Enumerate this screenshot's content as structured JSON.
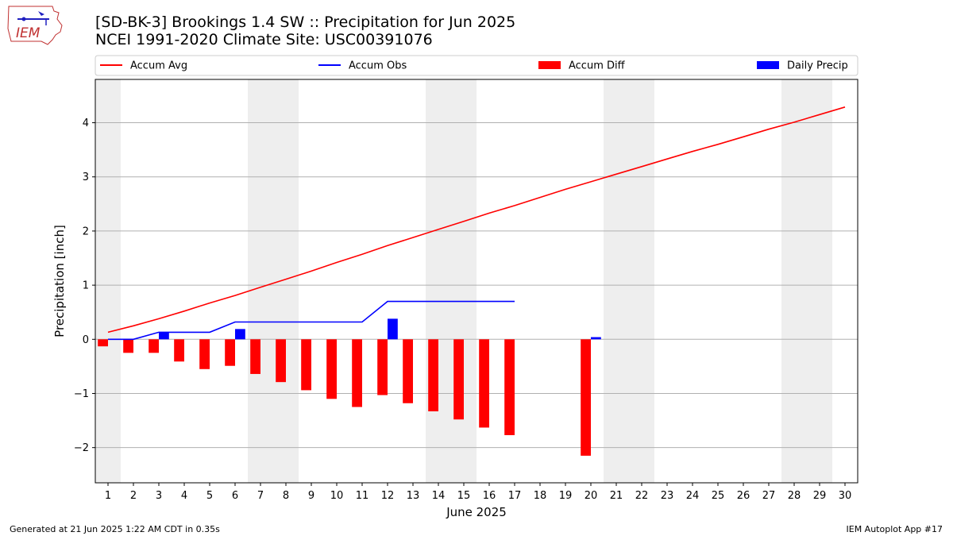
{
  "header": {
    "title_line1": "[SD-BK-3] Brookings 1.4 SW :: Precipitation for Jun 2025",
    "title_line2": "NCEI 1991-2020 Climate Site: USC00391076",
    "logo_text": "IEM"
  },
  "footer": {
    "generated": "Generated at 21 Jun 2025 1:22 AM CDT in 0.35s",
    "app": "IEM Autoplot App #17"
  },
  "colors": {
    "accum_avg": "#ff0000",
    "accum_obs": "#0000ff",
    "accum_diff": "#ff0000",
    "daily_precip": "#0000ff",
    "weekend_shade": "#eeeeee",
    "grid": "#b0b0b0"
  },
  "chart_data": {
    "type": "bar",
    "title": "[SD-BK-3] Brookings 1.4 SW :: Precipitation for Jun 2025",
    "subtitle": "NCEI 1991-2020 Climate Site: USC00391076",
    "xlabel": "June 2025",
    "ylabel": "Precipitation [inch]",
    "xlim": [
      0.5,
      30.5
    ],
    "ylim": [
      -2.65,
      4.8
    ],
    "yticks": [
      -2,
      -1,
      0,
      1,
      2,
      3,
      4
    ],
    "ytick_labels": [
      "−2",
      "−1",
      "0",
      "1",
      "2",
      "3",
      "4"
    ],
    "x": [
      1,
      2,
      3,
      4,
      5,
      6,
      7,
      8,
      9,
      10,
      11,
      12,
      13,
      14,
      15,
      16,
      17,
      18,
      19,
      20,
      21,
      22,
      23,
      24,
      25,
      26,
      27,
      28,
      29,
      30
    ],
    "grid": "horizontal",
    "legend_position": "top",
    "weekend_shaded_days": [
      1,
      7,
      8,
      14,
      15,
      21,
      22,
      28,
      29
    ],
    "legend": [
      "Accum Avg",
      "Accum Obs",
      "Accum Diff",
      "Daily Precip"
    ],
    "series": [
      {
        "name": "Accum Avg",
        "type": "line",
        "x": [
          1,
          2,
          3,
          4,
          5,
          6,
          7,
          8,
          9,
          10,
          11,
          12,
          13,
          14,
          15,
          16,
          17,
          18,
          19,
          20,
          21,
          22,
          23,
          24,
          25,
          26,
          27,
          28,
          29,
          30
        ],
        "values": [
          0.13,
          0.25,
          0.38,
          0.52,
          0.67,
          0.81,
          0.96,
          1.11,
          1.26,
          1.42,
          1.57,
          1.73,
          1.88,
          2.03,
          2.18,
          2.33,
          2.47,
          2.62,
          2.77,
          2.91,
          3.05,
          3.19,
          3.33,
          3.47,
          3.6,
          3.74,
          3.88,
          4.01,
          4.15,
          4.29
        ]
      },
      {
        "name": "Accum Obs",
        "type": "line",
        "x": [
          1,
          2,
          3,
          4,
          5,
          6,
          7,
          8,
          9,
          10,
          11,
          12,
          13,
          14,
          15,
          16,
          17
        ],
        "values": [
          0.0,
          0.0,
          0.13,
          0.13,
          0.13,
          0.32,
          0.32,
          0.32,
          0.32,
          0.32,
          0.32,
          0.7,
          0.7,
          0.7,
          0.7,
          0.7,
          0.7
        ]
      },
      {
        "name": "Accum Diff",
        "type": "bar",
        "x": [
          1,
          2,
          3,
          4,
          5,
          6,
          7,
          8,
          9,
          10,
          11,
          12,
          13,
          14,
          15,
          16,
          17,
          20
        ],
        "values": [
          -0.13,
          -0.25,
          -0.25,
          -0.41,
          -0.55,
          -0.49,
          -0.64,
          -0.79,
          -0.94,
          -1.1,
          -1.25,
          -1.03,
          -1.18,
          -1.33,
          -1.48,
          -1.63,
          -1.77,
          -2.15
        ]
      },
      {
        "name": "Daily Precip",
        "type": "bar",
        "x": [
          3,
          6,
          12,
          20
        ],
        "values": [
          0.13,
          0.19,
          0.38,
          0.04
        ]
      }
    ]
  }
}
